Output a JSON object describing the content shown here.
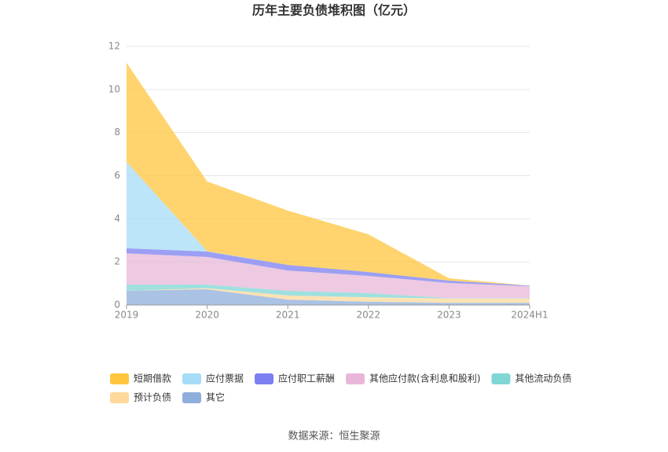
{
  "chart_data": {
    "type": "stacked_area",
    "title": "历年主要负债堆积图（亿元）",
    "categories": [
      "2019",
      "2020",
      "2021",
      "2022",
      "2023",
      "2024H1"
    ],
    "ylim": [
      0,
      12
    ],
    "yticks": [
      0,
      2,
      4,
      6,
      8,
      10,
      12
    ],
    "grid": true,
    "series": [
      {
        "name": "其它",
        "color": "#8eaedb",
        "values": [
          0.66,
          0.73,
          0.25,
          0.15,
          0.1,
          0.1
        ]
      },
      {
        "name": "预计负债",
        "color": "#ffd89b",
        "values": [
          0,
          0.05,
          0.19,
          0.21,
          0.2,
          0.2
        ]
      },
      {
        "name": "其他流动负债",
        "color": "#7fd6d4",
        "values": [
          0.29,
          0.17,
          0.22,
          0.19,
          0.02,
          0.02
        ]
      },
      {
        "name": "其他应付款(含利息和股利)",
        "color": "#e8b7d8",
        "values": [
          1.45,
          1.28,
          0.94,
          0.8,
          0.7,
          0.55
        ]
      },
      {
        "name": "应付职工薪酬",
        "color": "#7b7ff0",
        "values": [
          0.23,
          0.25,
          0.26,
          0.18,
          0.11,
          0.03
        ]
      },
      {
        "name": "应付票据",
        "color": "#a6dcf7",
        "values": [
          4.01,
          0.02,
          0,
          0,
          0,
          0
        ]
      },
      {
        "name": "短期借款",
        "color": "#ffc53d",
        "values": [
          4.6,
          3.23,
          2.52,
          1.75,
          0.11,
          0
        ]
      }
    ],
    "legend_order": [
      6,
      5,
      4,
      3,
      2,
      1,
      0
    ],
    "source": "数据来源：恒生聚源"
  }
}
